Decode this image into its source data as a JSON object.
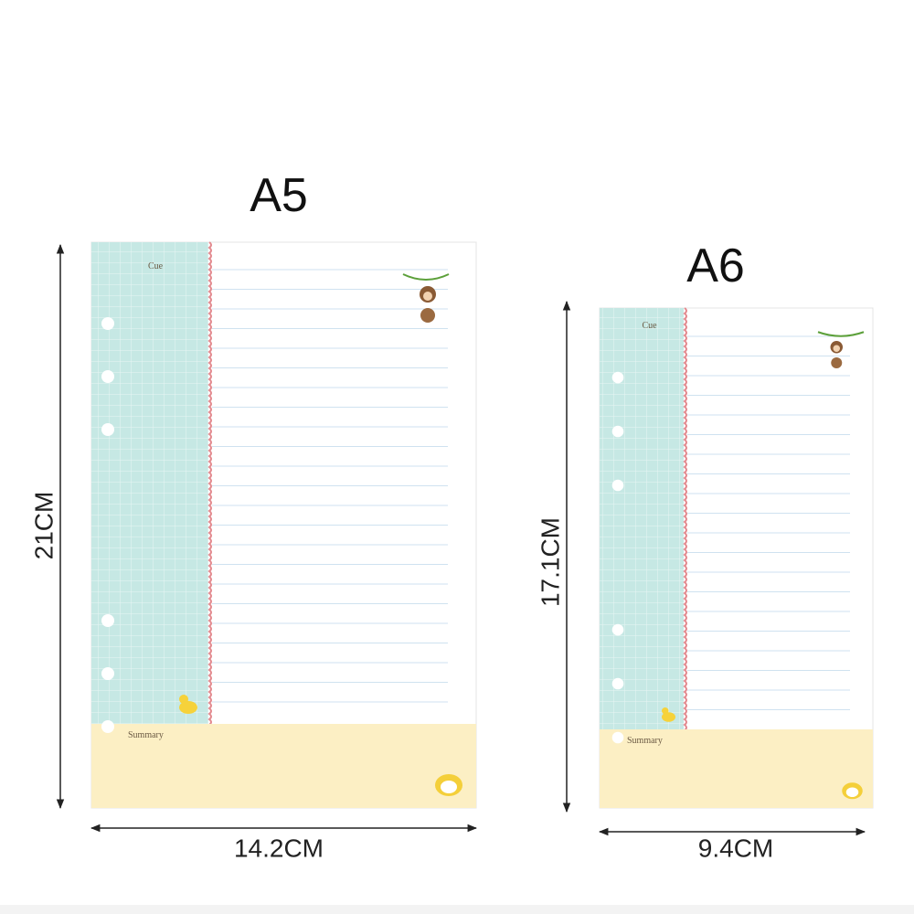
{
  "pages": [
    {
      "label": "A5",
      "cue": "Cue",
      "summary": "Summary",
      "height": "21CM",
      "width": "14.2CM"
    },
    {
      "label": "A6",
      "cue": "Cue",
      "summary": "Summary",
      "height": "17.1CM",
      "width": "9.4CM"
    }
  ]
}
